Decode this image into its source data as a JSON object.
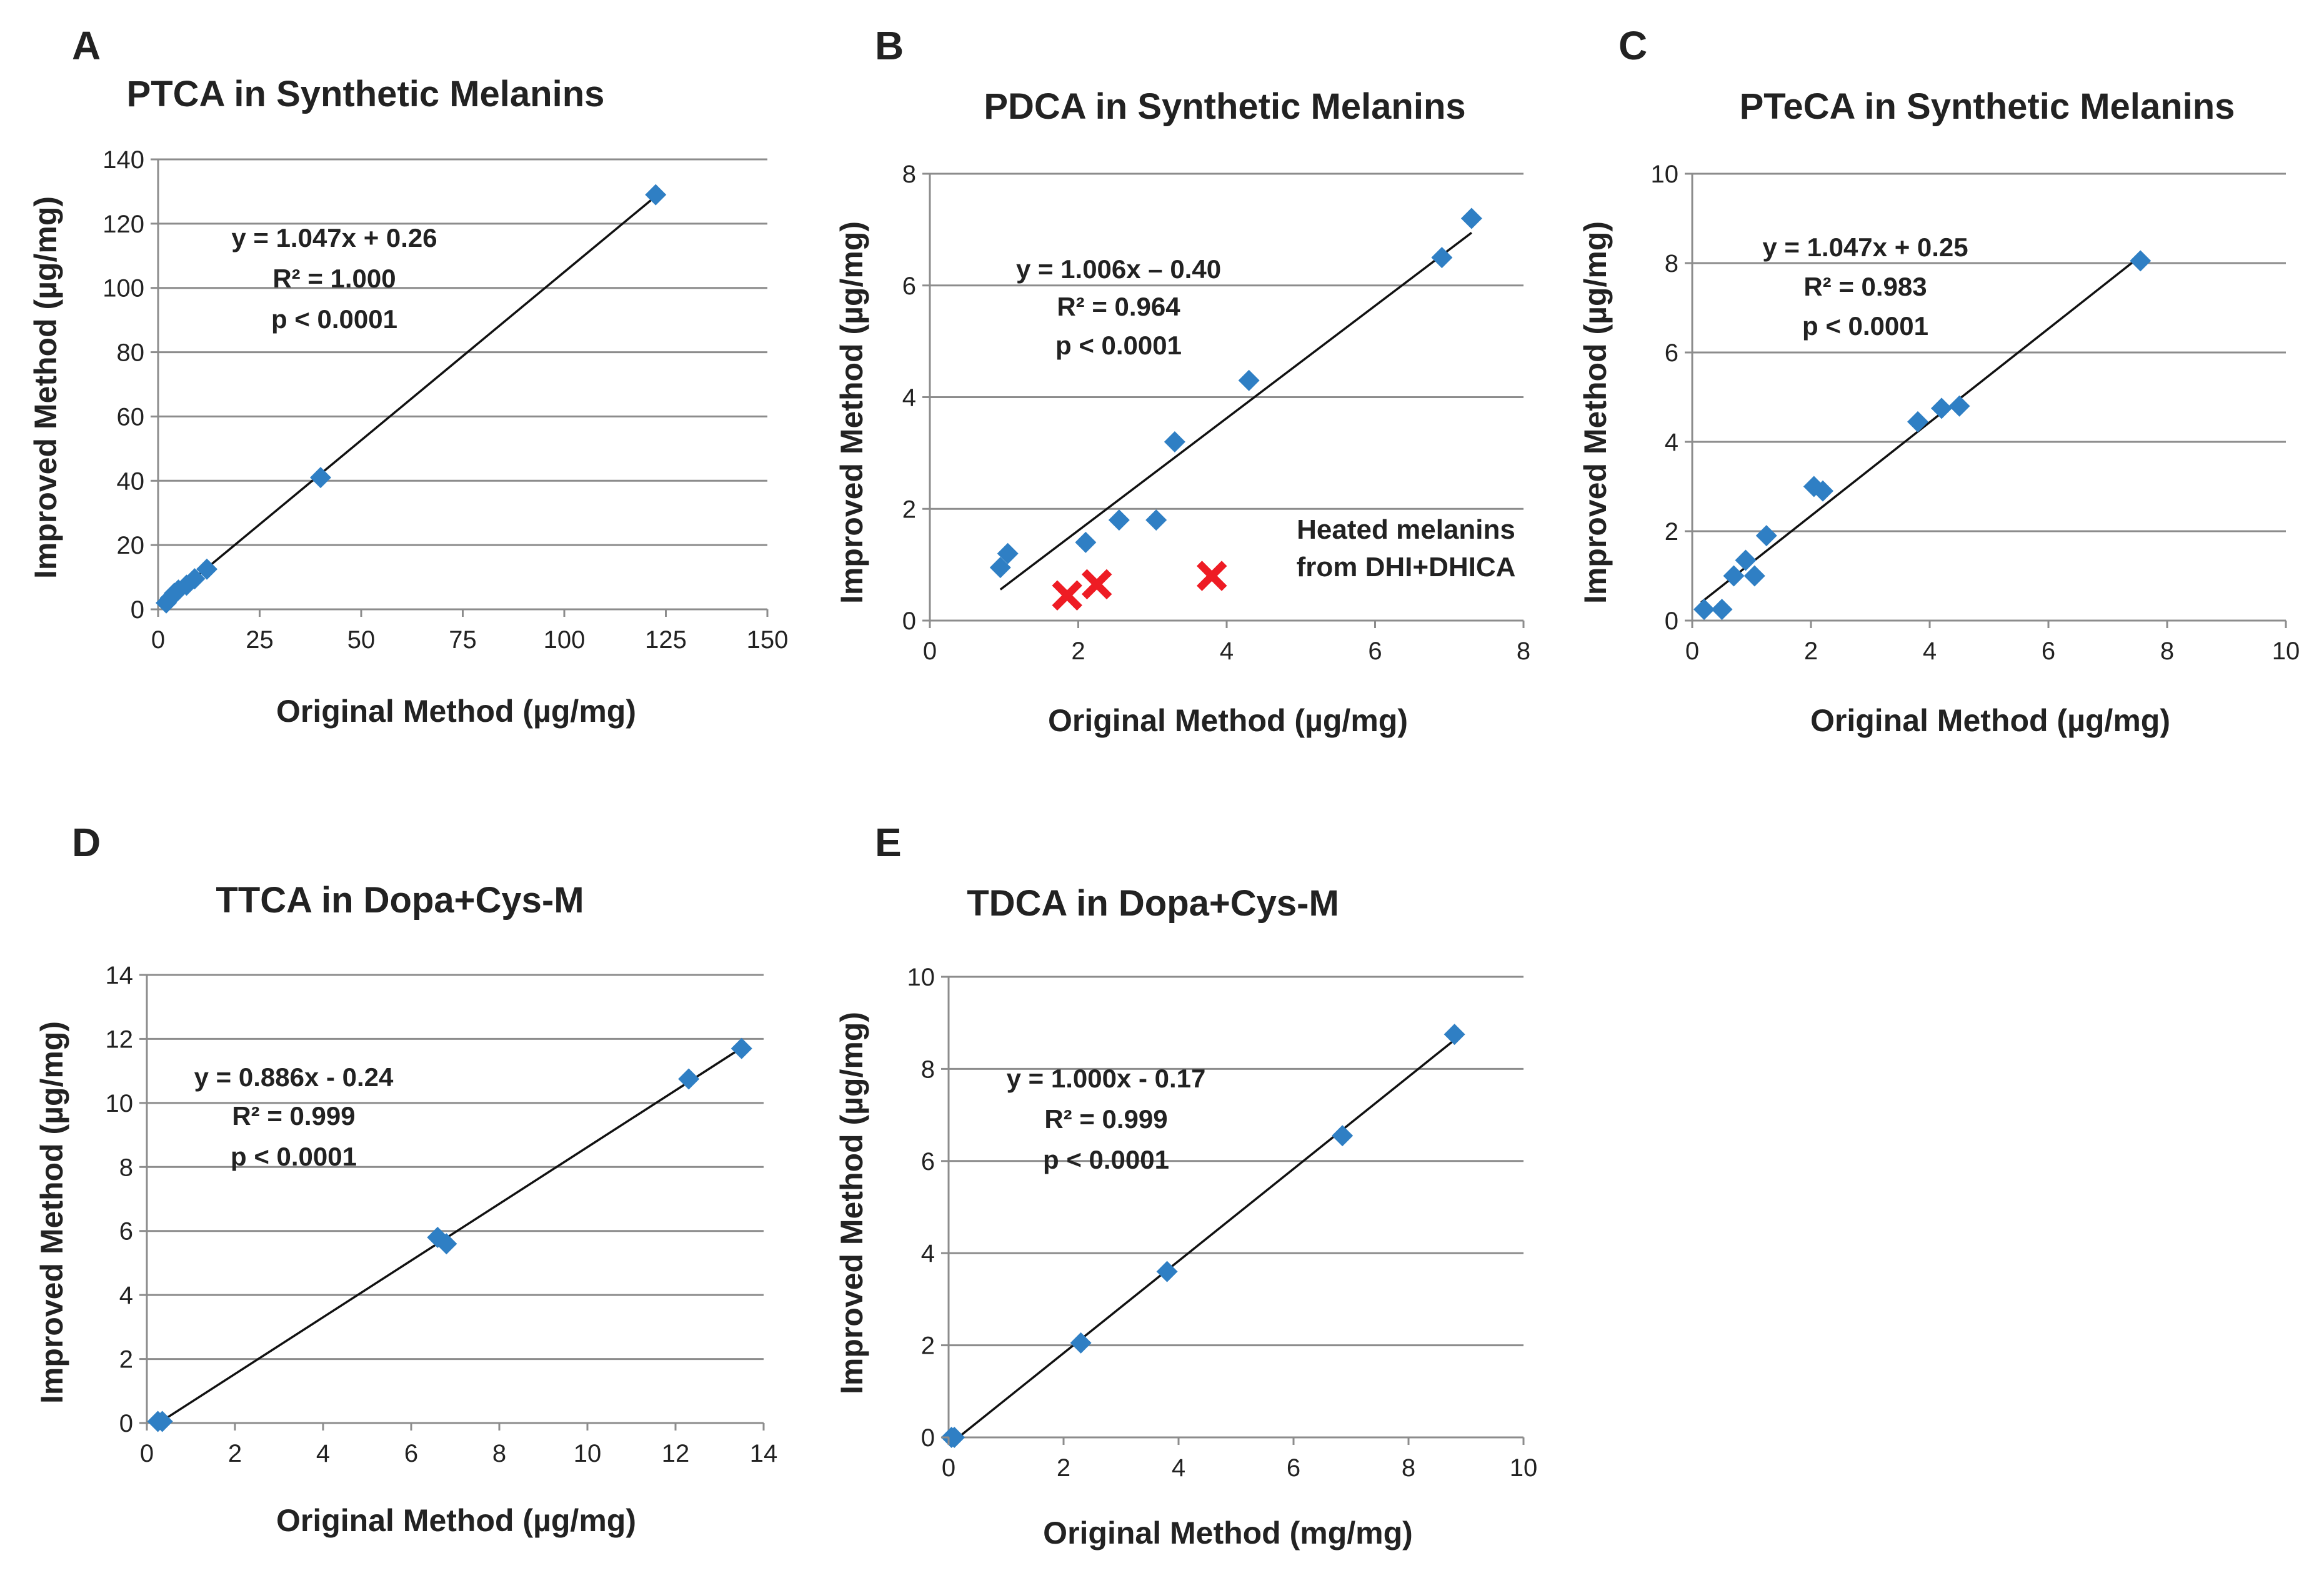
{
  "colors": {
    "marker": "#2f7fc4",
    "excluded_marker": "#ee1c24",
    "grid": "#8c8c8c",
    "fit_line": "#111111"
  },
  "chart_data": [
    {
      "type": "scatter",
      "panel": "A",
      "title": "PTCA in Synthetic Melanins",
      "xlabel": "Original Method (µg/mg)",
      "ylabel": "Improved Method (µg/mg)",
      "xlim": [
        0,
        150
      ],
      "ylim": [
        0,
        140
      ],
      "xticks": [
        0,
        25,
        50,
        75,
        100,
        125,
        150
      ],
      "yticks": [
        0,
        20,
        40,
        60,
        80,
        100,
        120,
        140
      ],
      "grid": "horizontal",
      "annotation": [
        "y = 1.047x + 0.26",
        "R² = 1.000",
        "p < 0.0001"
      ],
      "fit": {
        "slope": 1.047,
        "intercept": 0.26,
        "x_range": [
          2,
          123
        ]
      },
      "series": [
        {
          "name": "Synthetic melanins",
          "marker": "diamond",
          "x": [
            2,
            3,
            4,
            5,
            7,
            9,
            12,
            40,
            122.5
          ],
          "y": [
            2,
            3.5,
            5,
            6,
            7.5,
            9.5,
            12.5,
            41,
            129
          ]
        }
      ]
    },
    {
      "type": "scatter",
      "panel": "B",
      "title": "PDCA in Synthetic Melanins",
      "xlabel": "Original Method (µg/mg)",
      "ylabel": "Improved Method (µg/mg)",
      "xlim": [
        0,
        8
      ],
      "ylim": [
        0,
        8
      ],
      "xticks": [
        0,
        2,
        4,
        6,
        8
      ],
      "yticks": [
        0,
        2,
        4,
        6,
        8
      ],
      "grid": "horizontal",
      "annotation": [
        "y = 1.006x – 0.40",
        "R² = 0.964",
        "p < 0.0001"
      ],
      "note": [
        "Heated melanins",
        "from DHI+DHICA"
      ],
      "fit": {
        "slope": 1.006,
        "intercept": -0.4,
        "x_range": [
          0.95,
          7.3
        ]
      },
      "series": [
        {
          "name": "Synthetic melanins",
          "marker": "diamond",
          "x": [
            0.95,
            1.05,
            2.1,
            2.55,
            3.05,
            3.3,
            4.3,
            6.9,
            7.3
          ],
          "y": [
            0.95,
            1.2,
            1.4,
            1.8,
            1.8,
            3.2,
            4.3,
            6.5,
            7.2
          ]
        },
        {
          "name": "Heated melanins from DHI+DHICA",
          "marker": "x",
          "x": [
            1.85,
            2.25,
            3.8
          ],
          "y": [
            0.45,
            0.65,
            0.8
          ]
        }
      ]
    },
    {
      "type": "scatter",
      "panel": "C",
      "title": "PTeCA in Synthetic Melanins",
      "xlabel": "Original Method (µg/mg)",
      "ylabel": "Improved Method (µg/mg)",
      "xlim": [
        0,
        10
      ],
      "ylim": [
        0,
        10
      ],
      "xticks": [
        0,
        2,
        4,
        6,
        8,
        10
      ],
      "yticks": [
        0,
        2,
        4,
        6,
        8,
        10
      ],
      "grid": "horizontal",
      "annotation": [
        "y = 1.047x + 0.25",
        "R² = 0.983",
        "p < 0.0001"
      ],
      "fit": {
        "slope": 1.047,
        "intercept": 0.25,
        "x_range": [
          0.15,
          7.55
        ]
      },
      "series": [
        {
          "name": "Synthetic melanins",
          "marker": "diamond",
          "x": [
            0.2,
            0.5,
            0.7,
            0.9,
            1.05,
            1.25,
            2.05,
            2.2,
            3.8,
            4.2,
            4.5,
            7.55
          ],
          "y": [
            0.25,
            0.25,
            1.0,
            1.35,
            1.0,
            1.9,
            3.0,
            2.9,
            4.45,
            4.75,
            4.8,
            8.05
          ]
        }
      ]
    },
    {
      "type": "scatter",
      "panel": "D",
      "title": "TTCA in Dopa+Cys-M",
      "xlabel": "Original Method (µg/mg)",
      "ylabel": "Improved Method (µg/mg)",
      "xlim": [
        0,
        14
      ],
      "ylim": [
        0,
        14
      ],
      "xticks": [
        0,
        2,
        4,
        6,
        8,
        10,
        12,
        14
      ],
      "yticks": [
        0,
        2,
        4,
        6,
        8,
        10,
        12,
        14
      ],
      "grid": "horizontal",
      "annotation": [
        "y = 0.886x - 0.24",
        "R² = 0.999",
        "p < 0.0001"
      ],
      "fit": {
        "slope": 0.886,
        "intercept": -0.24,
        "x_range": [
          0.27,
          13.5
        ]
      },
      "series": [
        {
          "name": "Dopa+Cys-M",
          "marker": "diamond",
          "x": [
            0.25,
            0.35,
            6.6,
            6.8,
            12.3,
            13.5
          ],
          "y": [
            0.05,
            0.05,
            5.8,
            5.6,
            10.75,
            11.7
          ]
        }
      ]
    },
    {
      "type": "scatter",
      "panel": "E",
      "title": "TDCA in Dopa+Cys-M",
      "xlabel": "Original Method (mg/mg)",
      "ylabel": "Improved Method (µg/mg)",
      "xlim": [
        0,
        10
      ],
      "ylim": [
        0,
        10
      ],
      "xticks": [
        0,
        2,
        4,
        6,
        8,
        10
      ],
      "yticks": [
        0,
        2,
        4,
        6,
        8,
        10
      ],
      "grid": "horizontal",
      "annotation": [
        "y = 1.000x - 0.17",
        "R² = 0.999",
        "p < 0.0001"
      ],
      "fit": {
        "slope": 1.0,
        "intercept": -0.17,
        "x_range": [
          0.17,
          8.8
        ]
      },
      "series": [
        {
          "name": "Dopa+Cys-M",
          "marker": "diamond",
          "x": [
            0.05,
            0.1,
            2.3,
            3.8,
            6.85,
            8.8
          ],
          "y": [
            0.0,
            0.0,
            2.05,
            3.6,
            6.55,
            8.75
          ]
        }
      ]
    }
  ]
}
